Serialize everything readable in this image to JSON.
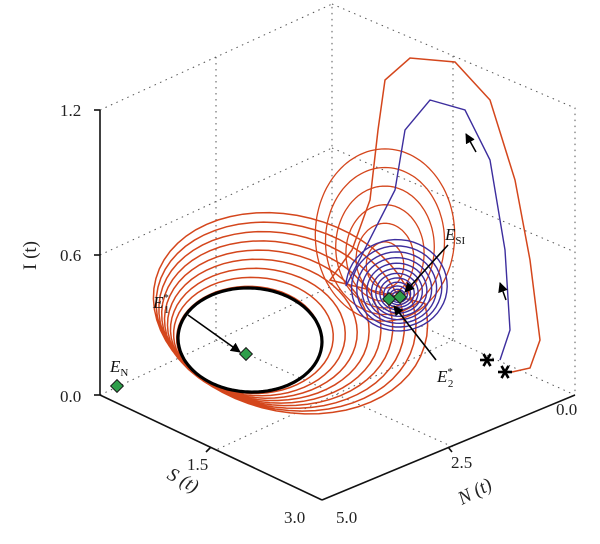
{
  "chart_data": {
    "type": "line",
    "projection": "3d",
    "title": "",
    "axes": {
      "x": {
        "label": "N (t)",
        "range": [
          0.0,
          5.0
        ],
        "ticks": [
          0.0,
          2.5,
          5.0
        ],
        "tick_labels": [
          "0.0",
          "2.5",
          "5.0"
        ]
      },
      "y": {
        "label": "S (t)",
        "range": [
          0.0,
          3.0
        ],
        "ticks": [
          0.0,
          1.5,
          3.0
        ],
        "tick_labels": [
          "0.0",
          "1.5",
          "3.0"
        ]
      },
      "z": {
        "label": "I (t)",
        "range": [
          0.0,
          1.2
        ],
        "ticks": [
          0.0,
          0.6,
          1.2
        ],
        "tick_labels": [
          "0.0",
          "0.6",
          "1.2"
        ]
      }
    },
    "grid": true,
    "colors": {
      "orbit": "#d4461c",
      "spiral": "#3d2e9e",
      "limit_cycle": "#000000",
      "equilibrium": "#2e9e4a"
    },
    "equilibria": [
      {
        "label": "E",
        "sub": "N",
        "sup": "",
        "point": [
          0.0,
          0.0,
          0.0
        ]
      },
      {
        "label": "E",
        "sub": "1",
        "sup": "*",
        "point": [
          3.6,
          1.45,
          0.0
        ]
      },
      {
        "label": "E",
        "sub": "SI",
        "sup": "",
        "point": [
          0.9,
          2.3,
          0.3
        ]
      },
      {
        "label": "E",
        "sub": "2",
        "sup": "*",
        "point": [
          0.95,
          2.55,
          0.27
        ]
      }
    ],
    "initial_points": [
      [
        0.3,
        2.9,
        0.0
      ],
      [
        0.0,
        2.9,
        0.0
      ]
    ],
    "series": [
      {
        "kind": "limit_cycle",
        "color": "#000000",
        "center": [
          3.6,
          1.45,
          0.0
        ],
        "radius": [
          1.15,
          0.75,
          0.0
        ]
      },
      {
        "kind": "orbit_to_cycle",
        "color": "#d4461c",
        "start": [
          0.3,
          2.9,
          0.0
        ],
        "loops": 9
      },
      {
        "kind": "spiral_to_equilibrium",
        "color": "#3d2e9e",
        "start": [
          0.0,
          2.9,
          0.0
        ],
        "target": [
          0.95,
          2.55,
          0.27
        ],
        "loops": 12
      }
    ]
  }
}
